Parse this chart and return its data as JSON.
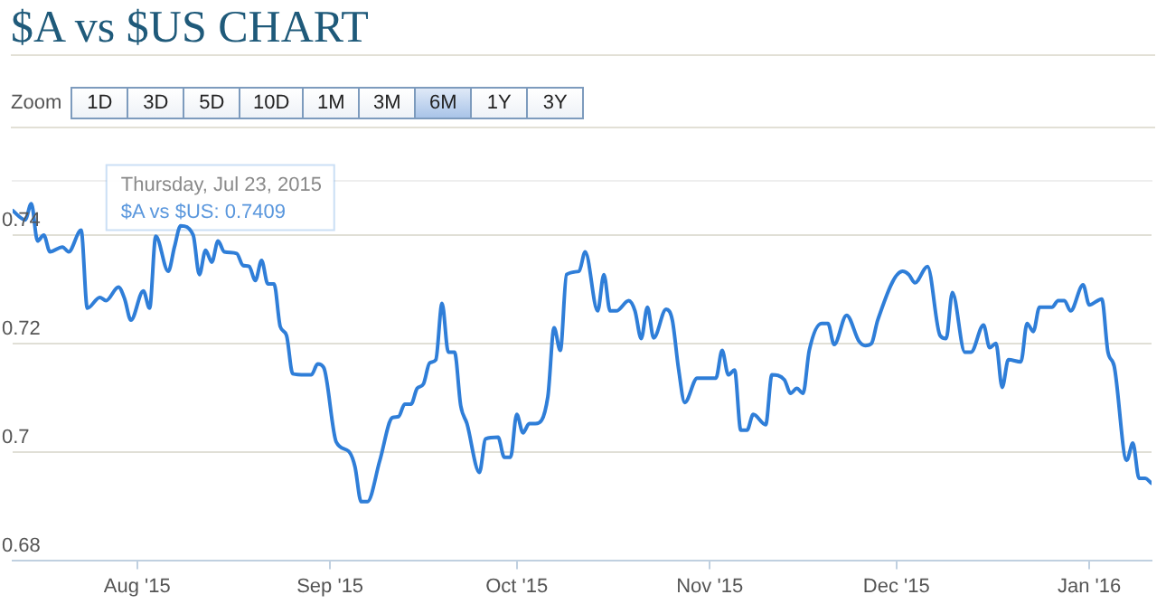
{
  "chart_data": {
    "type": "line",
    "title": "$A vs $US CHART",
    "annotations": [
      {
        "text": "Thursday, Jul 23, 2015",
        "x": "2015-07-23",
        "y": 0.7409
      },
      {
        "text": "$A vs $US: 0.7409",
        "x": "2015-07-23",
        "y": 0.7409
      },
      "Zoom",
      "1D",
      "3D",
      "5D",
      "10D",
      "1M",
      "3M",
      "6M",
      "1Y",
      "3Y"
    ],
    "series": [
      {
        "color": "#2f7ed8",
        "x": [
          "2015-07-12",
          "2015-07-14",
          "2015-07-15",
          "2015-07-16",
          "2015-07-17",
          "2015-07-18",
          "2015-07-20",
          "2015-07-21",
          "2015-07-23",
          "2015-07-24",
          "2015-07-26",
          "2015-07-27",
          "2015-07-29",
          "2015-07-30",
          "2015-07-31",
          "2015-08-02",
          "2015-08-03",
          "2015-08-04",
          "2015-08-06",
          "2015-08-07",
          "2015-08-08",
          "2015-08-10",
          "2015-08-11",
          "2015-08-12",
          "2015-08-13",
          "2015-08-14",
          "2015-08-15",
          "2015-08-17",
          "2015-08-18",
          "2015-08-19",
          "2015-08-20",
          "2015-08-21",
          "2015-08-22",
          "2015-08-23",
          "2015-08-24",
          "2015-08-25",
          "2015-08-26",
          "2015-08-28",
          "2015-08-29",
          "2015-08-30",
          "2015-08-31",
          "2015-09-02",
          "2015-09-04",
          "2015-09-05",
          "2015-09-06",
          "2015-09-07",
          "2015-09-09",
          "2015-09-11",
          "2015-09-12",
          "2015-09-13",
          "2015-09-14",
          "2015-09-15",
          "2015-09-16",
          "2015-09-17",
          "2015-09-18",
          "2015-09-19",
          "2015-09-20",
          "2015-09-21",
          "2015-09-22",
          "2015-09-23",
          "2015-09-25",
          "2015-09-26",
          "2015-09-28",
          "2015-09-29",
          "2015-09-30",
          "2015-10-01",
          "2015-10-02",
          "2015-10-03",
          "2015-10-04",
          "2015-10-06",
          "2015-10-07",
          "2015-10-08",
          "2015-10-09",
          "2015-10-11",
          "2015-10-12",
          "2015-10-14",
          "2015-10-15",
          "2015-10-16",
          "2015-10-17",
          "2015-10-19",
          "2015-10-20",
          "2015-10-21",
          "2015-10-22",
          "2015-10-23",
          "2015-10-25",
          "2015-10-26",
          "2015-10-27",
          "2015-10-28",
          "2015-10-30",
          "2015-11-02",
          "2015-11-03",
          "2015-11-04",
          "2015-11-05",
          "2015-11-06",
          "2015-11-07",
          "2015-11-08",
          "2015-11-10",
          "2015-11-11",
          "2015-11-13",
          "2015-11-14",
          "2015-11-15",
          "2015-11-16",
          "2015-11-17",
          "2015-11-19",
          "2015-11-20",
          "2015-11-21",
          "2015-11-23",
          "2015-11-25",
          "2015-11-26",
          "2015-11-27",
          "2015-11-28",
          "2015-12-02",
          "2015-12-03",
          "2015-12-04",
          "2015-12-06",
          "2015-12-08",
          "2015-12-09",
          "2015-12-10",
          "2015-12-12",
          "2015-12-13",
          "2015-12-15",
          "2015-12-16",
          "2015-12-17",
          "2015-12-18",
          "2015-12-19",
          "2015-12-21",
          "2015-12-22",
          "2015-12-23",
          "2015-12-24",
          "2015-12-26",
          "2015-12-27",
          "2015-12-28",
          "2015-12-29",
          "2015-12-31",
          "2016-01-01",
          "2016-01-03",
          "2016-01-04",
          "2016-01-05",
          "2016-01-07",
          "2016-01-08",
          "2016-01-09",
          "2016-01-10",
          "2016-01-11"
        ],
        "values": [
          0.7445,
          0.7428,
          0.7458,
          0.7389,
          0.74,
          0.7369,
          0.7378,
          0.7369,
          0.7409,
          0.7265,
          0.7285,
          0.7279,
          0.7304,
          0.7282,
          0.7243,
          0.7297,
          0.7265,
          0.7398,
          0.7333,
          0.7378,
          0.7417,
          0.74,
          0.7327,
          0.7372,
          0.735,
          0.7389,
          0.7369,
          0.7366,
          0.7344,
          0.7342,
          0.7316,
          0.7353,
          0.731,
          0.731,
          0.7231,
          0.7215,
          0.7144,
          0.7142,
          0.7142,
          0.7162,
          0.7155,
          0.7018,
          0.7001,
          0.6973,
          0.6908,
          0.6908,
          0.6984,
          0.7063,
          0.7065,
          0.7088,
          0.7088,
          0.7117,
          0.7125,
          0.7164,
          0.717,
          0.7274,
          0.7184,
          0.7184,
          0.7085,
          0.7052,
          0.6962,
          0.7024,
          0.7027,
          0.699,
          0.699,
          0.7069,
          0.7035,
          0.7052,
          0.7052,
          0.7102,
          0.7229,
          0.7187,
          0.7327,
          0.7333,
          0.7369,
          0.726,
          0.7327,
          0.726,
          0.726,
          0.7279,
          0.726,
          0.7209,
          0.7267,
          0.721,
          0.7263,
          0.7243,
          0.7153,
          0.7091,
          0.7136,
          0.7136,
          0.7187,
          0.7142,
          0.7151,
          0.704,
          0.704,
          0.7069,
          0.705,
          0.7142,
          0.7133,
          0.7108,
          0.7117,
          0.7108,
          0.7187,
          0.7237,
          0.7237,
          0.7198,
          0.7252,
          0.7204,
          0.7196,
          0.72,
          0.7243,
          0.7333,
          0.7327,
          0.7312,
          0.7342,
          0.7215,
          0.7209,
          0.7294,
          0.7184,
          0.7184,
          0.7234,
          0.7192,
          0.72,
          0.7119,
          0.717,
          0.7166,
          0.7237,
          0.7222,
          0.7267,
          0.7267,
          0.7279,
          0.7279,
          0.726,
          0.7308,
          0.7271,
          0.7282,
          0.7184,
          0.7158,
          0.6984,
          0.7016,
          0.6951,
          0.6951,
          0.6942
        ]
      }
    ],
    "xlim": [
      "2015-07-12",
      "2016-01-11"
    ],
    "xticks": [
      {
        "value": "2015-08-01",
        "label": "Aug '15"
      },
      {
        "value": "2015-09-01",
        "label": "Sep '15"
      },
      {
        "value": "2015-10-01",
        "label": "Oct '15"
      },
      {
        "value": "2015-11-01",
        "label": "Nov '15"
      },
      {
        "value": "2015-12-01",
        "label": "Dec '15"
      },
      {
        "value": "2016-01-01",
        "label": "Jan '16"
      }
    ],
    "ylim": [
      0.68,
      0.75
    ],
    "yticks": [
      0.68,
      0.7,
      0.72,
      0.74
    ],
    "grid": "y",
    "legend": false,
    "marker": "none",
    "line_style": "solid"
  }
}
